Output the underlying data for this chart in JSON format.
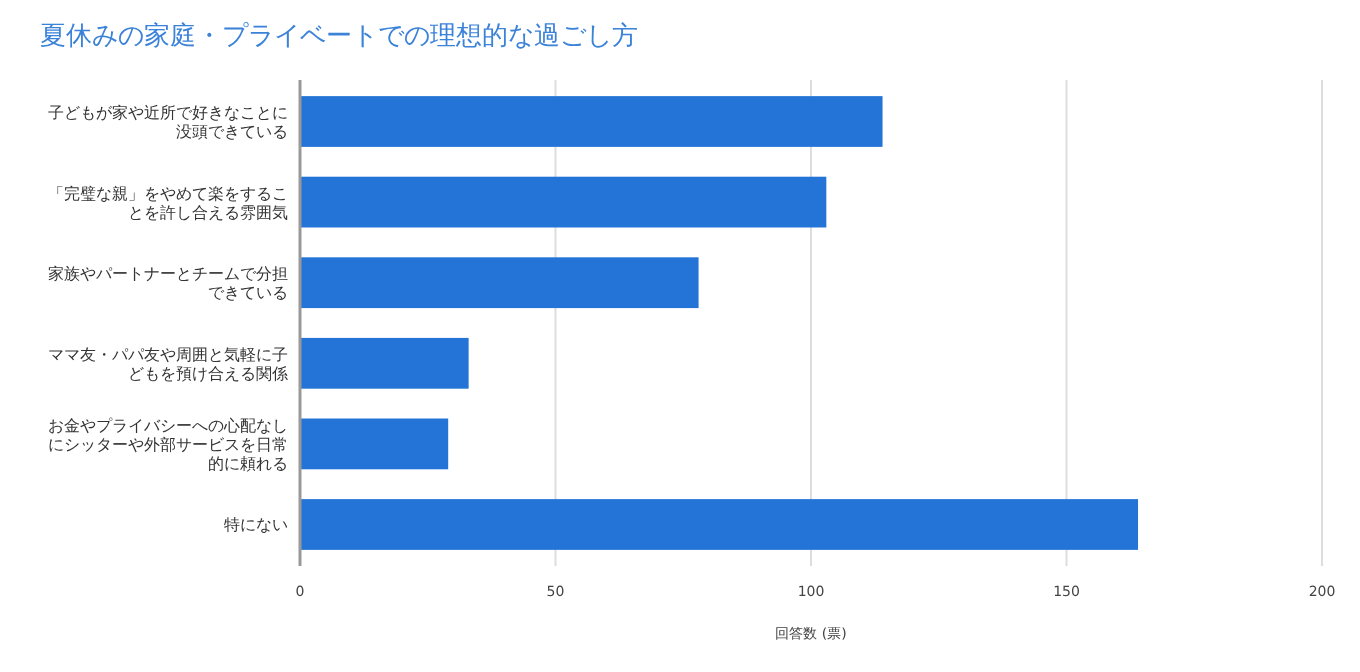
{
  "chart_data": {
    "type": "bar",
    "orientation": "horizontal",
    "title": "夏休みの家庭・プライベートでの理想的な過ごし方",
    "categories": [
      "子どもが家や近所で好きなことに没頭できている",
      "「完璧な親」をやめて楽をすることを許し合える雰囲気",
      "家族やパートナーとチームで分担できている",
      "ママ友・パパ友や周囲と気軽に子どもを預け合える関係",
      "お金やプライバシーへの心配なしにシッターや外部サービスを日常的に頼れる",
      "特にない"
    ],
    "values": [
      114,
      103,
      78,
      33,
      29,
      164
    ],
    "color": "#2474d7",
    "xlabel": "回答数 (票)",
    "xlim": [
      0,
      200
    ],
    "xticks": [
      0,
      50,
      100,
      150,
      200
    ],
    "grid": "x"
  }
}
